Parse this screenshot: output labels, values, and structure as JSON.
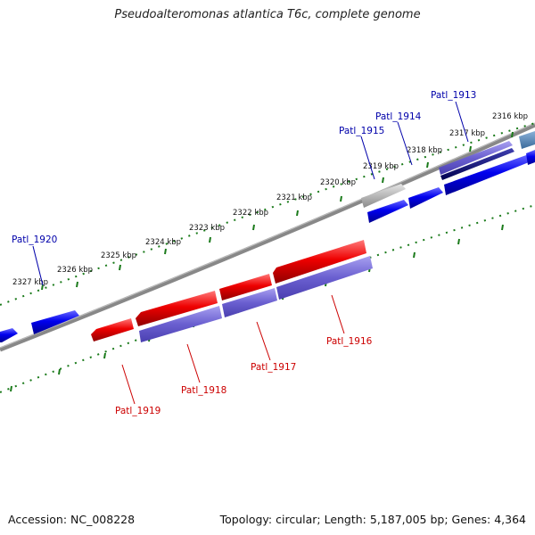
{
  "title": "Pseudoalteromonas atlantica T6c, complete genome",
  "footer": {
    "accession": "Accession: NC_008228",
    "summary": "Topology: circular; Length: 5,187,005 bp; Genes: 4,364"
  },
  "ticks": [
    "2316 kbp",
    "2317 kbp",
    "2318 kbp",
    "2319 kbp",
    "2320 kbp",
    "2321 kbp",
    "2322 kbp",
    "2323 kbp",
    "2324 kbp",
    "2325 kbp",
    "2326 kbp",
    "2327 kbp"
  ],
  "forward_labels": [
    "Patl_1913",
    "Patl_1914",
    "Patl_1915",
    "Patl_1920"
  ],
  "reverse_labels": [
    "Patl_1916",
    "Patl_1917",
    "Patl_1918",
    "Patl_1919"
  ],
  "colors": {
    "forward_gene": "#0000ee",
    "reverse_gene": "#ee0000",
    "cds_lane": "#6a5fd0",
    "backbone": "#808080",
    "tick": "#1a7a1a",
    "forward_label": "#0000aa",
    "reverse_label": "#cc0000"
  }
}
